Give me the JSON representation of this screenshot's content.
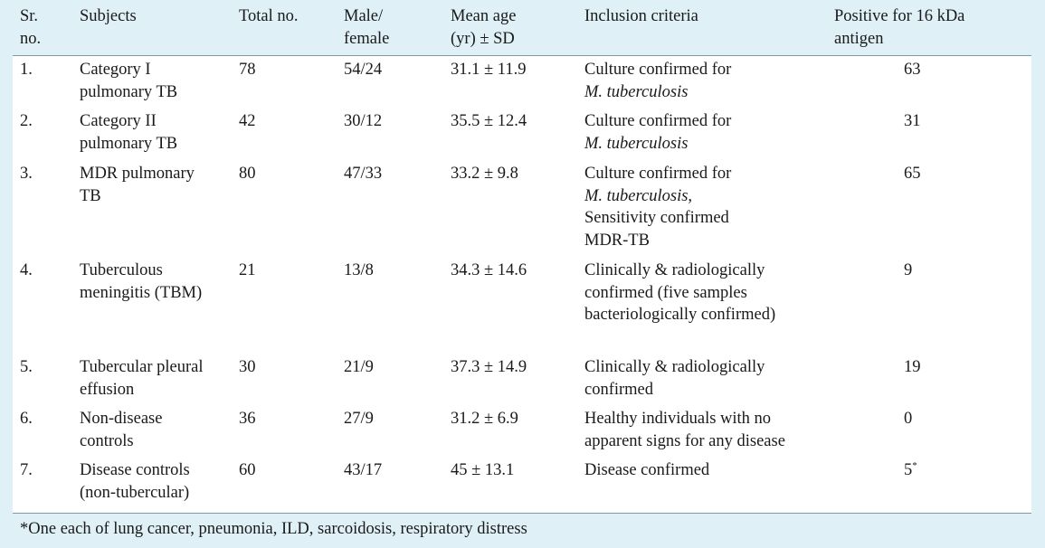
{
  "headers": {
    "sr": [
      "Sr.",
      "no."
    ],
    "subjects": [
      "Subjects"
    ],
    "total": [
      "Total no."
    ],
    "sex": [
      "Male/",
      "female"
    ],
    "age": [
      "Mean age",
      "(yr) ± SD"
    ],
    "criteria": [
      "Inclusion criteria"
    ],
    "positive": [
      "Positive for 16 kDa",
      "antigen"
    ]
  },
  "rows": [
    {
      "sr": "1.",
      "subject": [
        "Category I",
        "pulmonary TB"
      ],
      "total": "78",
      "sex": "54/24",
      "age": "31.1 ± 11.9",
      "criteria": [
        [
          "Culture confirmed for",
          false
        ],
        [
          "M. tuberculosis",
          true
        ]
      ],
      "positive": "63",
      "mark": ""
    },
    {
      "sr": "2.",
      "subject": [
        "Category II",
        "pulmonary TB"
      ],
      "total": "42",
      "sex": "30/12",
      "age": "35.5 ± 12.4",
      "criteria": [
        [
          "Culture confirmed for",
          false
        ],
        [
          "M. tuberculosis",
          true
        ]
      ],
      "positive": "31",
      "mark": ""
    },
    {
      "sr": "3.",
      "subject": [
        "MDR pulmonary",
        "TB"
      ],
      "total": "80",
      "sex": "47/33",
      "age": "33.2 ± 9.8",
      "criteria": [
        [
          "Culture confirmed for",
          false
        ],
        [
          "M. tuberculosis,",
          true
        ],
        [
          "Sensitivity confirmed",
          false
        ],
        [
          "MDR-TB",
          false
        ]
      ],
      "positive": "65",
      "mark": ""
    },
    {
      "sr": "4.",
      "subject": [
        "Tuberculous",
        "meningitis (TBM)"
      ],
      "total": "21",
      "sex": "13/8",
      "age": "34.3 ± 14.6",
      "criteria": [
        [
          "Clinically & radiologically",
          false
        ],
        [
          "confirmed (five samples",
          false
        ],
        [
          "bacteriologically confirmed)",
          false
        ]
      ],
      "positive": "9",
      "mark": ""
    },
    {
      "sr": "5.",
      "subject": [
        "Tubercular pleural",
        "effusion"
      ],
      "total": "30",
      "sex": "21/9",
      "age": "37.3 ± 14.9",
      "criteria": [
        [
          "Clinically & radiologically",
          false
        ],
        [
          "confirmed",
          false
        ]
      ],
      "positive": "19",
      "mark": ""
    },
    {
      "sr": "6.",
      "subject": [
        "Non-disease",
        "controls"
      ],
      "total": "36",
      "sex": "27/9",
      "age": "31.2 ± 6.9",
      "criteria": [
        [
          "Healthy individuals with  no",
          false
        ],
        [
          "apparent signs for any disease",
          false
        ]
      ],
      "positive": "0",
      "mark": ""
    },
    {
      "sr": "7.",
      "subject": [
        "Disease controls",
        "(non-tubercular)"
      ],
      "total": "60",
      "sex": "43/17",
      "age": "45 ± 13.1",
      "criteria": [
        [
          "Disease confirmed",
          false
        ]
      ],
      "positive": "5",
      "mark": "*"
    }
  ],
  "footnote": "*One each of lung cancer, pneumonia, ILD, sarcoidosis, respiratory distress"
}
